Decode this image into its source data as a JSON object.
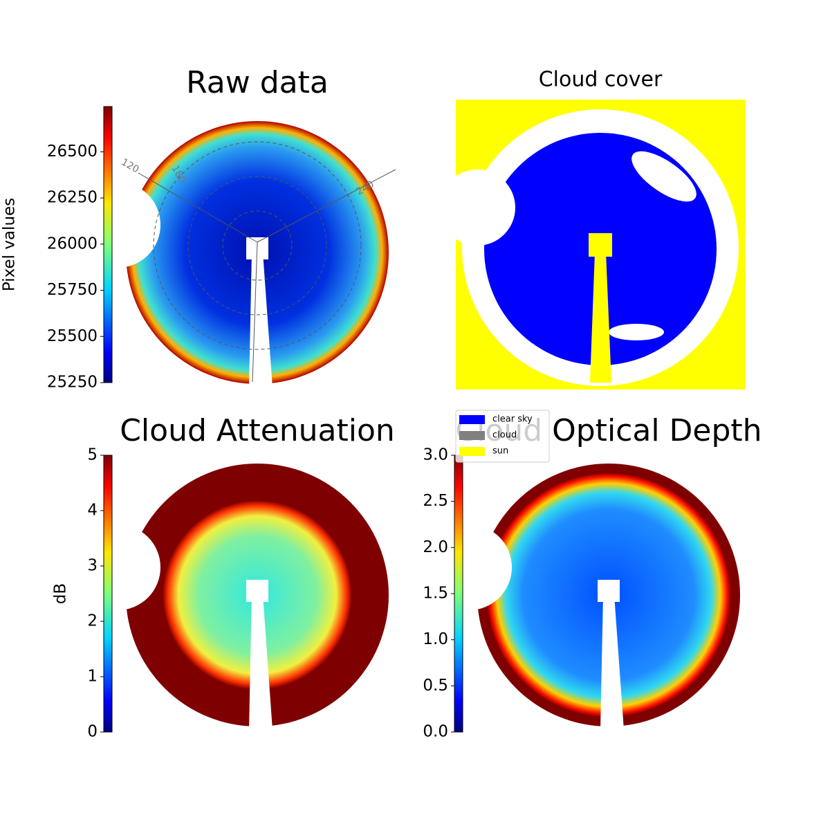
{
  "chart_data": [
    {
      "type": "image",
      "title": "Raw data",
      "colorbar_label": "Pixel values",
      "colormap": "jet",
      "ylim": [
        25250,
        26745
      ],
      "yticks": [
        25250,
        25500,
        25750,
        26000,
        26250,
        26500
      ],
      "azimuth_labels": [
        120,
        180,
        240
      ]
    },
    {
      "type": "mask",
      "title": "Cloud cover",
      "legend": [
        {
          "label": "clear sky",
          "color": "#0000ff"
        },
        {
          "label": "cloud",
          "color": "#808080"
        },
        {
          "label": "sun",
          "color": "#ffff00"
        }
      ]
    },
    {
      "type": "image",
      "title": "Cloud Attenuation",
      "colorbar_label": "dB",
      "colormap": "jet",
      "ylim": [
        0,
        5
      ],
      "yticks": [
        0,
        1,
        2,
        3,
        4,
        5
      ]
    },
    {
      "type": "image",
      "title": "Cloud Optical Depth",
      "colormap": "jet",
      "ylim": [
        0,
        3
      ],
      "yticks": [
        {
          "value": 0,
          "label": "0.0"
        },
        0.5,
        {
          "value": 1,
          "label": "1.0"
        },
        1.5,
        {
          "value": 2,
          "label": "2.0"
        },
        2.5,
        {
          "value": 3,
          "label": "3.0"
        }
      ]
    }
  ]
}
